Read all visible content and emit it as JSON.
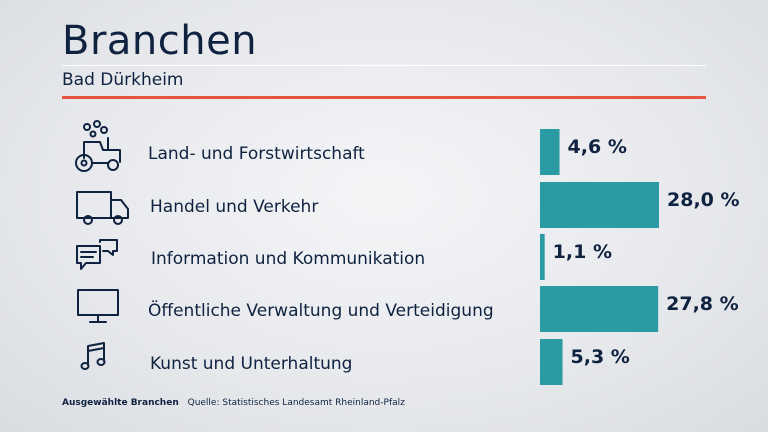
{
  "header": {
    "title": "Branchen",
    "subtitle": "Bad Dürkheim"
  },
  "footer": {
    "label": "Ausgewählte Branchen",
    "source": "Quelle: Statistisches Landesamt Rheinland-Pfalz"
  },
  "colors": {
    "bar": "#2a9ba3",
    "text": "#0f2240",
    "accent": "#e8533f"
  },
  "chart_data": {
    "type": "bar",
    "orientation": "horizontal",
    "categories": [
      "Land- und Forstwirtschaft",
      "Handel und Verkehr",
      "Information und Kommunikation",
      "Öffentliche Verwaltung und Verteidigung",
      "Kunst und Unterhaltung"
    ],
    "icons": [
      "tractor-icon",
      "truck-icon",
      "speech-bubbles-icon",
      "monitor-icon",
      "music-note-icon"
    ],
    "values": [
      4.6,
      28.0,
      1.1,
      27.8,
      5.3
    ],
    "value_labels": [
      "4,6 %",
      "28,0 %",
      "1,1 %",
      "27,8 %",
      "5,3 %"
    ],
    "title": "Branchen",
    "xlabel": "",
    "ylabel": "",
    "xlim": [
      0,
      28.0
    ],
    "grid": false,
    "legend": "none"
  }
}
